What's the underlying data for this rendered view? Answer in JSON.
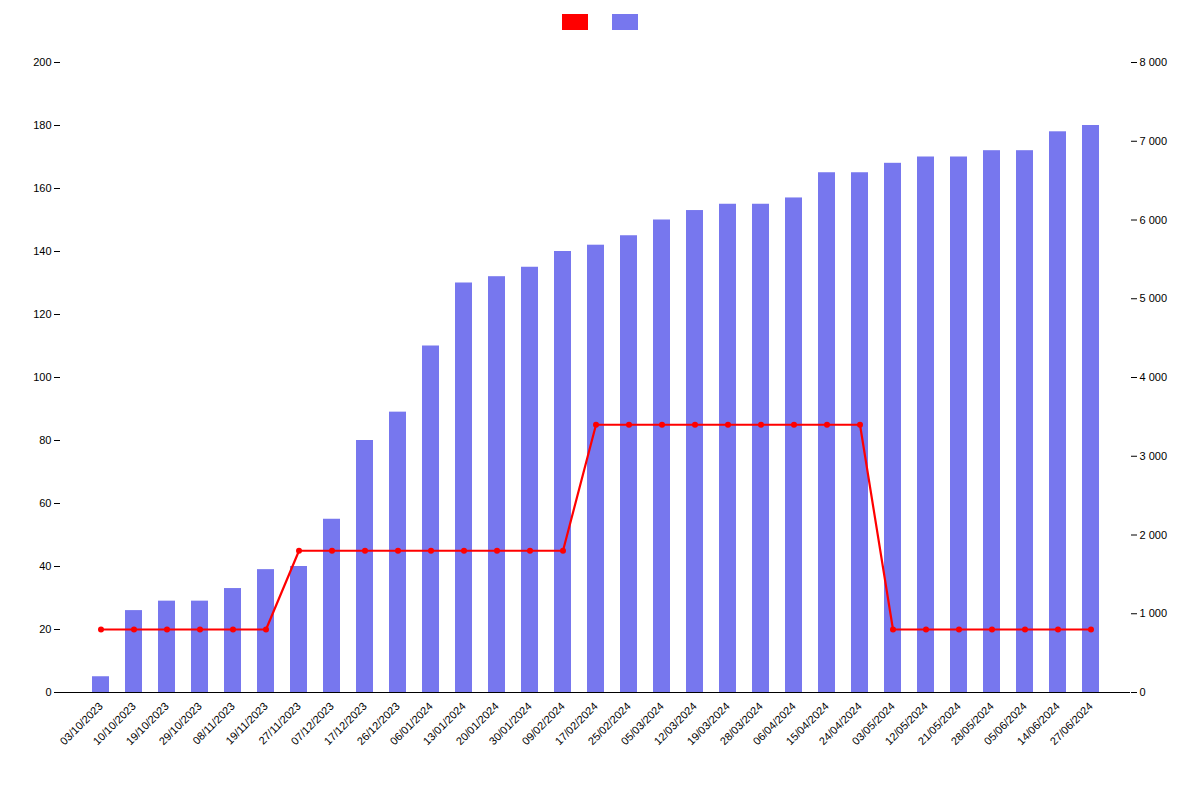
{
  "chart_data": {
    "type": "bar",
    "categories": [
      "03/10/2023",
      "10/10/2023",
      "19/10/2023",
      "29/10/2023",
      "08/11/2023",
      "19/11/2023",
      "27/11/2023",
      "07/12/2023",
      "17/12/2023",
      "26/12/2023",
      "06/01/2024",
      "13/01/2024",
      "20/01/2024",
      "30/01/2024",
      "09/02/2024",
      "17/02/2024",
      "25/02/2024",
      "05/03/2024",
      "12/03/2024",
      "19/03/2024",
      "28/03/2024",
      "06/04/2024",
      "15/04/2024",
      "24/04/2024",
      "03/05/2024",
      "12/05/2024",
      "21/05/2024",
      "28/05/2024",
      "05/06/2024",
      "14/06/2024",
      "27/06/2024"
    ],
    "series": [
      {
        "type": "bar",
        "color": "#7777ee",
        "values": [
          5,
          26,
          29,
          29,
          33,
          39,
          40,
          55,
          80,
          89,
          110,
          130,
          132,
          135,
          140,
          142,
          145,
          150,
          153,
          155,
          155,
          157,
          165,
          165,
          168,
          170,
          170,
          172,
          172,
          178,
          180
        ]
      },
      {
        "type": "line",
        "color": "#ff0000",
        "marker": "circle",
        "values": [
          20,
          20,
          20,
          20,
          20,
          20,
          45,
          45,
          45,
          45,
          45,
          45,
          45,
          45,
          45,
          85,
          85,
          85,
          85,
          85,
          85,
          85,
          85,
          85,
          20,
          20,
          20,
          20,
          20,
          20,
          20
        ]
      }
    ],
    "ylim": [
      0,
      200
    ],
    "yticks": [
      0,
      20,
      40,
      60,
      80,
      100,
      120,
      140,
      160,
      180,
      200
    ],
    "y2lim": [
      0,
      8000
    ],
    "y2ticks": [
      0,
      {
        "value": 1000,
        "label": "1 000"
      },
      {
        "value": 2000,
        "label": "2 000"
      },
      {
        "value": 3000,
        "label": "3 000"
      },
      {
        "value": 4000,
        "label": "4 000"
      },
      {
        "value": 5000,
        "label": "5 000"
      },
      {
        "value": 6000,
        "label": "6 000"
      },
      {
        "value": 7000,
        "label": "7 000"
      },
      {
        "value": 8000,
        "label": "8 000"
      }
    ],
    "grid": false,
    "legend": "top"
  }
}
